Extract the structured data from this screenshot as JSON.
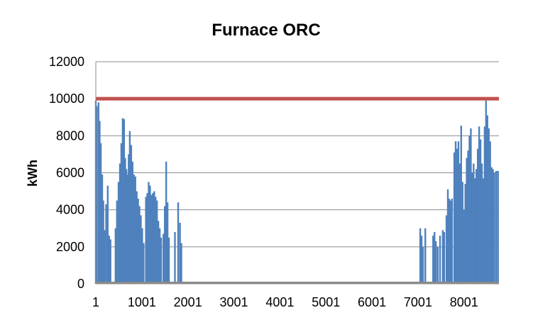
{
  "chart_data": {
    "type": "bar",
    "title": "Furnace ORC",
    "xlabel": "",
    "ylabel": "kWh",
    "ylim": [
      0,
      12000
    ],
    "xlim": [
      1,
      8760
    ],
    "x_ticks": [
      "1",
      "1001",
      "2001",
      "3001",
      "4001",
      "5001",
      "6001",
      "7001",
      "8001"
    ],
    "y_ticks": [
      "0",
      "2000",
      "4000",
      "6000",
      "8000",
      "10000",
      "12000"
    ],
    "grid": true,
    "legend": "none",
    "series": [
      {
        "values_note_free": true,
        "color": "#4F81BD",
        "spikes": [
          [
            1,
            9900
          ],
          [
            20,
            9600
          ],
          [
            60,
            9800
          ],
          [
            85,
            8800
          ],
          [
            110,
            7600
          ],
          [
            140,
            5900
          ],
          [
            165,
            4500
          ],
          [
            190,
            2900
          ],
          [
            225,
            4300
          ],
          [
            260,
            5300
          ],
          [
            290,
            2600
          ],
          [
            320,
            2400
          ],
          [
            430,
            3000
          ],
          [
            460,
            4500
          ],
          [
            495,
            5500
          ],
          [
            525,
            6500
          ],
          [
            555,
            7600
          ],
          [
            585,
            8950
          ],
          [
            615,
            8900
          ],
          [
            640,
            6800
          ],
          [
            665,
            6200
          ],
          [
            690,
            5900
          ],
          [
            715,
            7000
          ],
          [
            740,
            8250
          ],
          [
            770,
            7500
          ],
          [
            800,
            6600
          ],
          [
            830,
            5900
          ],
          [
            860,
            5800
          ],
          [
            890,
            5000
          ],
          [
            920,
            4600
          ],
          [
            950,
            4200
          ],
          [
            980,
            3700
          ],
          [
            1010,
            3000
          ],
          [
            1040,
            2200
          ],
          [
            1090,
            4700
          ],
          [
            1120,
            4900
          ],
          [
            1150,
            5500
          ],
          [
            1180,
            5300
          ],
          [
            1210,
            4800
          ],
          [
            1240,
            4900
          ],
          [
            1270,
            5000
          ],
          [
            1300,
            4700
          ],
          [
            1330,
            4500
          ],
          [
            1360,
            3400
          ],
          [
            1390,
            3000
          ],
          [
            1420,
            2500
          ],
          [
            1470,
            2700
          ],
          [
            1500,
            4200
          ],
          [
            1530,
            6600
          ],
          [
            1560,
            4400
          ],
          [
            1590,
            2500
          ],
          [
            1720,
            2800
          ],
          [
            1790,
            4400
          ],
          [
            1830,
            3300
          ],
          [
            1860,
            2200
          ],
          [
            7050,
            3000
          ],
          [
            7080,
            2600
          ],
          [
            7110,
            2000
          ],
          [
            7160,
            3000
          ],
          [
            7330,
            2600
          ],
          [
            7360,
            2800
          ],
          [
            7390,
            2300
          ],
          [
            7430,
            2000
          ],
          [
            7480,
            2600
          ],
          [
            7540,
            2900
          ],
          [
            7570,
            2800
          ],
          [
            7620,
            3700
          ],
          [
            7650,
            5100
          ],
          [
            7680,
            4600
          ],
          [
            7710,
            4500
          ],
          [
            7740,
            4600
          ],
          [
            7790,
            7100
          ],
          [
            7820,
            7700
          ],
          [
            7850,
            7300
          ],
          [
            7880,
            7700
          ],
          [
            7910,
            6500
          ],
          [
            7940,
            8550
          ],
          [
            7970,
            5500
          ],
          [
            8000,
            4000
          ],
          [
            8030,
            5400
          ],
          [
            8060,
            6800
          ],
          [
            8090,
            7200
          ],
          [
            8120,
            8000
          ],
          [
            8150,
            8400
          ],
          [
            8180,
            6000
          ],
          [
            8210,
            6500
          ],
          [
            8240,
            5700
          ],
          [
            8270,
            6200
          ],
          [
            8300,
            7300
          ],
          [
            8330,
            8500
          ],
          [
            8360,
            7800
          ],
          [
            8390,
            6500
          ],
          [
            8420,
            5700
          ],
          [
            8450,
            8500
          ],
          [
            8480,
            9900
          ],
          [
            8510,
            9100
          ],
          [
            8540,
            8400
          ],
          [
            8570,
            7700
          ],
          [
            8600,
            6300
          ],
          [
            8630,
            6200
          ],
          [
            8660,
            6000
          ],
          [
            8700,
            6100
          ],
          [
            8740,
            6100
          ]
        ]
      },
      {
        "type": "line",
        "color": "#C0504D",
        "values": [
          10000,
          10000
        ]
      }
    ]
  }
}
